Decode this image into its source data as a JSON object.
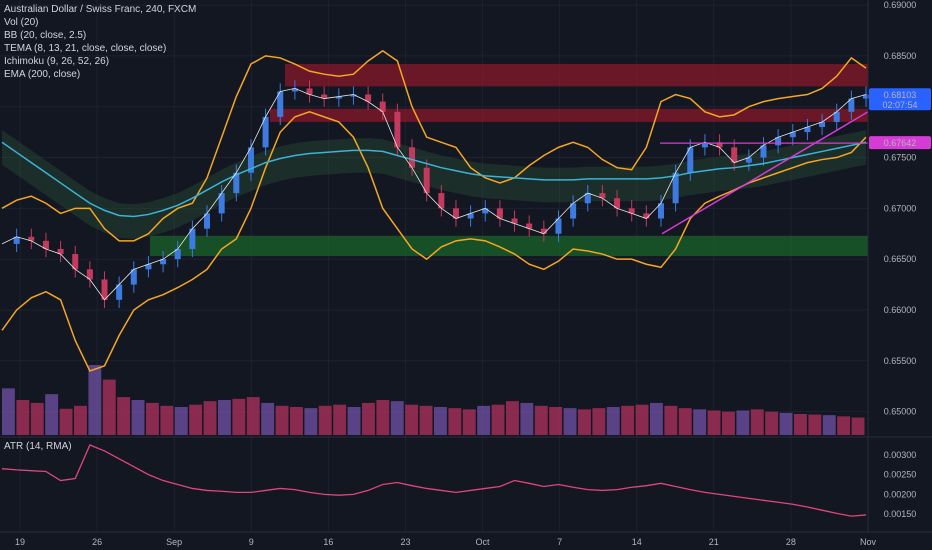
{
  "legend": {
    "title": "Australian Dollar / Swiss Franc, 240, FXCM",
    "vol": "Vol (20)",
    "bb": "BB (20, close, 2.5)",
    "tema": "TEMA (8, 13, 21, close, close, close)",
    "ichimoku": "Ichimoku (9, 26, 52, 26)",
    "ema": "EMA (200, close)",
    "atr": "ATR (14, RMA)"
  },
  "price_badges": {
    "last": "0.68103",
    "countdown": "02:07:54",
    "level": "0.67642"
  },
  "colors": {
    "background": "#131722",
    "bb": "#f5a623",
    "ema": "#3bb3d6",
    "tema": "#e8e8e8",
    "atr": "#e0457b",
    "trendline": "#d63bd6",
    "red_zone": "#b2182b",
    "green_zone": "#1b7d2a",
    "vol_up": "#6b4fa0",
    "vol_down": "#a8305a",
    "last_badge": "#2962ff",
    "level_badge": "#d63bd6"
  },
  "chart_data": {
    "type": "line",
    "symbol": "AUDCHF",
    "x_ticks": [
      "19",
      "26",
      "Sep",
      "9",
      "16",
      "23",
      "Oct",
      "7",
      "14",
      "21",
      "28",
      "Nov"
    ],
    "y_ticks": [
      "0.69000",
      "0.68500",
      "0.68000",
      "0.67500",
      "0.67000",
      "0.66500",
      "0.66000",
      "0.65500",
      "0.65000"
    ],
    "ylim": [
      0.6475,
      0.6905
    ],
    "atr_ticks": [
      "0.00300",
      "0.00250",
      "0.00200",
      "0.00150"
    ],
    "atr_ylim": [
      0.0012,
      0.0033
    ],
    "zones": [
      {
        "name": "resistance-upper",
        "y": [
          0.682,
          0.6842
        ],
        "color": "red"
      },
      {
        "name": "resistance-lower",
        "y": [
          0.6785,
          0.6798
        ],
        "color": "red"
      },
      {
        "name": "support",
        "y": [
          0.6653,
          0.6673
        ],
        "color": "green"
      }
    ],
    "level_line": 0.67642,
    "last_price": 0.68103,
    "series": [
      {
        "name": "Close",
        "values": [
          0.6665,
          0.6672,
          0.6668,
          0.666,
          0.6655,
          0.664,
          0.663,
          0.661,
          0.6625,
          0.664,
          0.6645,
          0.665,
          0.666,
          0.668,
          0.6695,
          0.6715,
          0.6735,
          0.676,
          0.679,
          0.6815,
          0.6818,
          0.6812,
          0.6808,
          0.681,
          0.6812,
          0.6805,
          0.6795,
          0.676,
          0.674,
          0.6715,
          0.67,
          0.669,
          0.6695,
          0.67,
          0.669,
          0.6685,
          0.668,
          0.6675,
          0.669,
          0.6705,
          0.6715,
          0.671,
          0.67,
          0.6695,
          0.669,
          0.6705,
          0.6735,
          0.676,
          0.6765,
          0.676,
          0.6745,
          0.675,
          0.6762,
          0.677,
          0.6775,
          0.678,
          0.6785,
          0.6795,
          0.6808,
          0.6812
        ]
      },
      {
        "name": "EMA",
        "values": [
          0.6765,
          0.6755,
          0.6745,
          0.6735,
          0.6725,
          0.6715,
          0.6705,
          0.6698,
          0.6693,
          0.6692,
          0.6694,
          0.6698,
          0.6703,
          0.671,
          0.6718,
          0.6726,
          0.6733,
          0.6739,
          0.6745,
          0.6749,
          0.6752,
          0.6754,
          0.6755,
          0.6756,
          0.6757,
          0.6757,
          0.6756,
          0.6752,
          0.6748,
          0.6744,
          0.674,
          0.6737,
          0.6734,
          0.6732,
          0.6731,
          0.673,
          0.6729,
          0.6728,
          0.6728,
          0.6728,
          0.6729,
          0.6729,
          0.6729,
          0.6729,
          0.6729,
          0.673,
          0.6732,
          0.6735,
          0.6737,
          0.6739,
          0.674,
          0.6742,
          0.6744,
          0.6747,
          0.675,
          0.6753,
          0.6756,
          0.6759,
          0.6762,
          0.6765
        ]
      },
      {
        "name": "BB Upper",
        "values": [
          0.67,
          0.6708,
          0.6712,
          0.6705,
          0.6695,
          0.67,
          0.67,
          0.668,
          0.6668,
          0.6668,
          0.6675,
          0.669,
          0.67,
          0.6705,
          0.673,
          0.677,
          0.681,
          0.6842,
          0.685,
          0.6848,
          0.6842,
          0.6835,
          0.6832,
          0.683,
          0.6832,
          0.6845,
          0.6855,
          0.6845,
          0.68,
          0.677,
          0.6765,
          0.676,
          0.674,
          0.673,
          0.6725,
          0.673,
          0.6742,
          0.6752,
          0.676,
          0.6765,
          0.676,
          0.6748,
          0.674,
          0.6738,
          0.676,
          0.6805,
          0.6812,
          0.6808,
          0.6795,
          0.679,
          0.6792,
          0.68,
          0.6805,
          0.6808,
          0.681,
          0.6812,
          0.6818,
          0.683,
          0.6848,
          0.6838
        ]
      },
      {
        "name": "BB Lower",
        "values": [
          0.658,
          0.66,
          0.6612,
          0.6618,
          0.661,
          0.657,
          0.654,
          0.6545,
          0.6575,
          0.66,
          0.661,
          0.6615,
          0.6622,
          0.663,
          0.664,
          0.666,
          0.667,
          0.67,
          0.674,
          0.6775,
          0.679,
          0.6795,
          0.679,
          0.6785,
          0.677,
          0.674,
          0.67,
          0.668,
          0.666,
          0.665,
          0.6662,
          0.6668,
          0.667,
          0.6668,
          0.6662,
          0.6655,
          0.6645,
          0.664,
          0.6648,
          0.666,
          0.6658,
          0.6655,
          0.665,
          0.665,
          0.6645,
          0.6642,
          0.666,
          0.669,
          0.6705,
          0.6712,
          0.6718,
          0.6725,
          0.673,
          0.6735,
          0.674,
          0.6745,
          0.6748,
          0.675,
          0.6755,
          0.677
        ]
      },
      {
        "name": "ATR",
        "values": [
          0.00265,
          0.00262,
          0.0026,
          0.00258,
          0.00235,
          0.0024,
          0.00325,
          0.0031,
          0.0029,
          0.0027,
          0.0025,
          0.00235,
          0.00225,
          0.00215,
          0.0021,
          0.00208,
          0.00205,
          0.00205,
          0.0021,
          0.00215,
          0.00212,
          0.00205,
          0.002,
          0.00198,
          0.002,
          0.0021,
          0.00225,
          0.0023,
          0.00222,
          0.00215,
          0.0021,
          0.00205,
          0.0021,
          0.00215,
          0.0022,
          0.00235,
          0.00228,
          0.0022,
          0.00225,
          0.00218,
          0.00212,
          0.0021,
          0.00212,
          0.00218,
          0.00222,
          0.00228,
          0.0022,
          0.00212,
          0.00205,
          0.002,
          0.00195,
          0.0019,
          0.00185,
          0.0018,
          0.00175,
          0.00168,
          0.0016,
          0.00152,
          0.00145,
          0.00148
        ]
      }
    ],
    "volume": [
      80,
      60,
      55,
      70,
      45,
      50,
      120,
      95,
      65,
      60,
      55,
      50,
      48,
      52,
      58,
      60,
      62,
      65,
      55,
      50,
      48,
      46,
      50,
      52,
      48,
      55,
      60,
      58,
      52,
      50,
      48,
      46,
      44,
      50,
      52,
      58,
      55,
      50,
      48,
      46,
      44,
      46,
      48,
      50,
      52,
      55,
      50,
      46,
      44,
      42,
      40,
      42,
      44,
      40,
      38,
      36,
      35,
      34,
      32,
      30
    ]
  }
}
